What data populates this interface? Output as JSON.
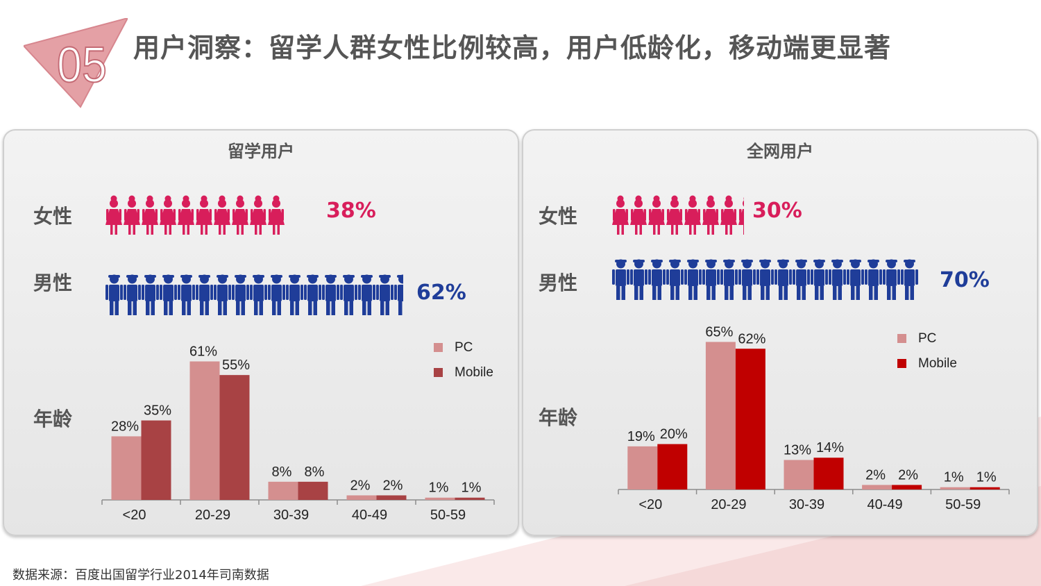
{
  "slide": {
    "number": "05",
    "title": "用户洞察：留学人群女性比例较高，用户低龄化，移动端更显著",
    "source": "数据来源：百度出国留学行业2014年司南数据"
  },
  "colors": {
    "female": "#d81e5b",
    "male": "#1f3d99",
    "pc": "#d48f8f",
    "mobile": "#a84244",
    "mobile_legend_right": "#c00000"
  },
  "panels": [
    {
      "title": "留学用户",
      "female_label": "女性",
      "female_pct": "38%",
      "female_icon_count": 10,
      "male_label": "男性",
      "male_pct": "62%",
      "male_icon_count": 16.5,
      "age_label": "年龄"
    },
    {
      "title": "全网用户",
      "female_label": "女性",
      "female_pct": "30%",
      "female_icon_count": 7.3,
      "male_label": "男性",
      "male_pct": "70%",
      "male_icon_count": 17,
      "age_label": "年龄"
    }
  ],
  "chart_data": [
    {
      "type": "bar",
      "categories": [
        "<20",
        "20-29",
        "30-39",
        "40-49",
        "50-59"
      ],
      "series": [
        {
          "name": "PC",
          "values": [
            28,
            61,
            8,
            2,
            1
          ],
          "labels": [
            "28%",
            "61%",
            "8%",
            "2%",
            "1%"
          ]
        },
        {
          "name": "Mobile",
          "values": [
            35,
            55,
            8,
            2,
            1
          ],
          "labels": [
            "35%",
            "55%",
            "8%",
            "2%",
            "1%"
          ]
        }
      ],
      "legend": "top-right",
      "grid": false
    },
    {
      "type": "bar",
      "categories": [
        "<20",
        "20-29",
        "30-39",
        "40-49",
        "50-59"
      ],
      "series": [
        {
          "name": "PC",
          "values": [
            19,
            65,
            13,
            2,
            1
          ],
          "labels": [
            "19%",
            "65%",
            "13%",
            "2%",
            "1%"
          ]
        },
        {
          "name": "Mobile",
          "values": [
            20,
            62,
            14,
            2,
            1
          ],
          "labels": [
            "20%",
            "62%",
            "14%",
            "2%",
            "1%"
          ]
        }
      ],
      "legend": "top-right",
      "grid": false
    }
  ]
}
